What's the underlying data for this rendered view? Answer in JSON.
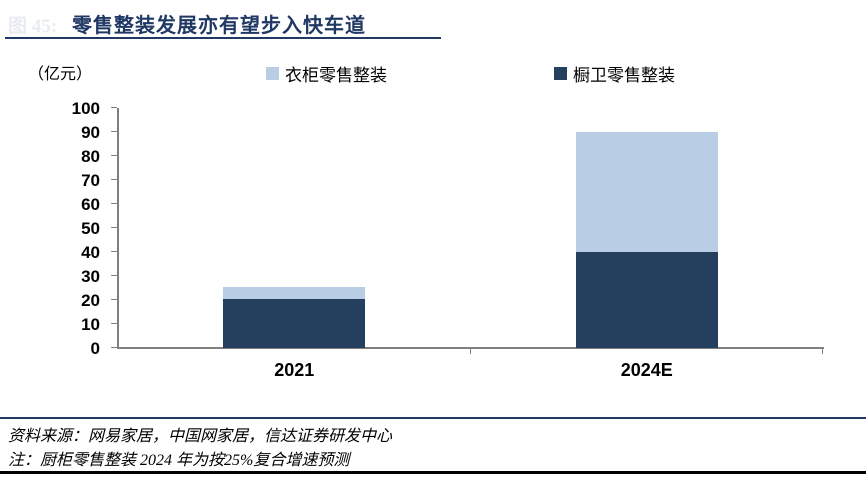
{
  "header": {
    "ghost_label": "图 45:",
    "title": "零售整装发展亦有望步入快车道"
  },
  "chart_data": {
    "type": "bar",
    "stacked": true,
    "title": "零售整装发展亦有望步入快车道",
    "unit_label": "（亿元）",
    "categories": [
      "2021",
      "2024E"
    ],
    "series": [
      {
        "name": "衣柜零售整装",
        "color": "#B9CDE4",
        "values": [
          5,
          50
        ],
        "stack_order": "top"
      },
      {
        "name": "橱卫零售整装",
        "color": "#24405E",
        "values": [
          20.5,
          40
        ],
        "stack_order": "bottom"
      }
    ],
    "totals": [
      25.5,
      90
    ],
    "ylim": [
      0,
      100
    ],
    "ytick_step": 10,
    "grid": false,
    "legend_position": "top",
    "axis_color": "#7F7F7F"
  },
  "footer": {
    "source": "资料来源：网易家居，中国网家居，信达证券研发中心",
    "note": "注：厨柜零售整装 2024 年为按25%复合增速预测"
  },
  "colors": {
    "title_navy": "#1F3864",
    "bar_dark": "#24405E",
    "bar_light": "#B9CDE4",
    "axis_gray": "#7F7F7F"
  }
}
